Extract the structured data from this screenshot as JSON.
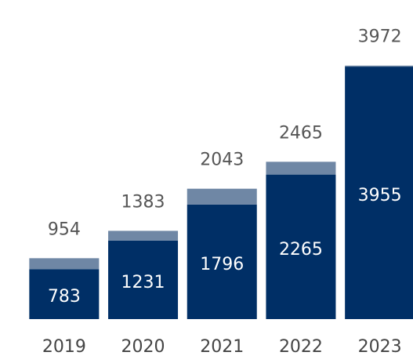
{
  "chart_data": {
    "type": "stacked_bar",
    "categories": [
      "2019",
      "2020",
      "2021",
      "2022",
      "2023"
    ],
    "series": [
      {
        "color": "#002f66",
        "values": [
          783,
          1231,
          1796,
          2265,
          3955
        ]
      },
      {
        "color": "#6f87a5",
        "values": [
          171,
          152,
          247,
          200,
          17
        ]
      }
    ],
    "totals": [
      954,
      1383,
      2043,
      2465,
      3972
    ],
    "ylim": [
      0,
      5000
    ]
  }
}
